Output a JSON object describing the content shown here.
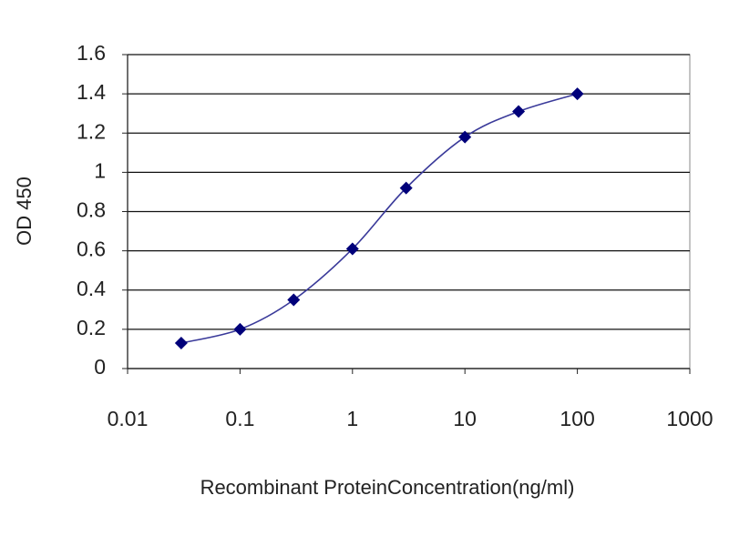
{
  "chart_data": {
    "type": "line",
    "x": [
      0.03,
      0.1,
      0.3,
      1,
      3,
      10,
      30,
      100
    ],
    "values": [
      0.13,
      0.2,
      0.35,
      0.61,
      0.92,
      1.18,
      1.31,
      1.4
    ],
    "color": "#3a3a9a",
    "marker_color": "#00007a",
    "x_label": "Recombinant ProteinConcentration(ng/ml)",
    "y_label": "OD 450",
    "xlim": [
      0.01,
      1000
    ],
    "xticks": [
      0.01,
      0.1,
      1,
      10,
      100,
      1000
    ],
    "x_log": true,
    "ylim": [
      0,
      1.6
    ],
    "yticks": [
      0,
      0.2,
      0.4,
      0.6,
      0.8,
      1,
      1.2,
      1.4,
      1.6
    ],
    "grid": true
  }
}
